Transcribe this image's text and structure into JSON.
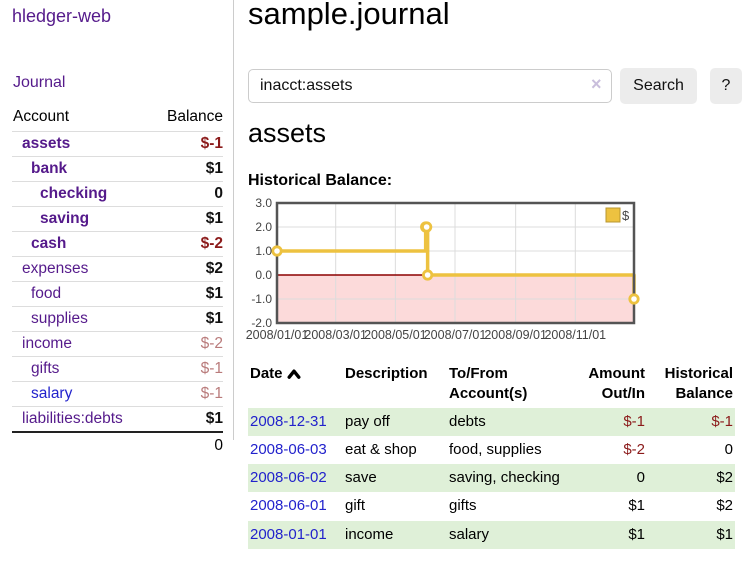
{
  "colors": {
    "link_purple": "#551a8b",
    "link_blue": "#2222cc",
    "negative_strong": "#8b1a1a",
    "negative_soft": "#b97b7b",
    "row_stripe_green": "#dff0d8",
    "chart_line_yellow": "#edc240",
    "chart_negative_fill": "#fcdada",
    "chart_zero_line": "#8b0000"
  },
  "sidebar": {
    "app_title": "hledger-web",
    "journal_link": "Journal",
    "account_header": "Account",
    "balance_header": "Balance",
    "accounts": [
      {
        "name": "assets",
        "balance": "$-1",
        "depth": 1,
        "emph": true,
        "name_color": "purple",
        "bal_style": "negs"
      },
      {
        "name": "bank",
        "balance": "$1",
        "depth": 2,
        "emph": true,
        "name_color": "purple",
        "bal_style": "black"
      },
      {
        "name": "checking",
        "balance": "0",
        "depth": 3,
        "emph": true,
        "name_color": "purple",
        "bal_style": "black"
      },
      {
        "name": "saving",
        "balance": "$1",
        "depth": 3,
        "emph": true,
        "name_color": "purple",
        "bal_style": "black"
      },
      {
        "name": "cash",
        "balance": "$-2",
        "depth": 2,
        "emph": true,
        "name_color": "purple",
        "bal_style": "negs"
      },
      {
        "name": "expenses",
        "balance": "$2",
        "depth": 1,
        "emph": false,
        "name_color": "purple",
        "bal_style": "black"
      },
      {
        "name": "food",
        "balance": "$1",
        "depth": 2,
        "emph": false,
        "name_color": "purple",
        "bal_style": "black"
      },
      {
        "name": "supplies",
        "balance": "$1",
        "depth": 2,
        "emph": false,
        "name_color": "purple",
        "bal_style": "black"
      },
      {
        "name": "income",
        "balance": "$-2",
        "depth": 1,
        "emph": false,
        "name_color": "purple",
        "bal_style": "negw"
      },
      {
        "name": "gifts",
        "balance": "$-1",
        "depth": 2,
        "emph": false,
        "name_color": "purple",
        "bal_style": "negw"
      },
      {
        "name": "salary",
        "balance": "$-1",
        "depth": 2,
        "emph": false,
        "name_color": "blue",
        "bal_style": "negw"
      },
      {
        "name": "liabilities:debts",
        "balance": "$1",
        "depth": 1,
        "emph": false,
        "name_color": "purple",
        "bal_style": "black"
      }
    ],
    "total": "0"
  },
  "main": {
    "title": "sample.journal",
    "search": {
      "value": "inacct:assets",
      "clear_icon": "×",
      "search_button": "Search",
      "help_button": "?"
    },
    "account_heading": "assets",
    "chart_heading": "Historical Balance:"
  },
  "chart_data": {
    "type": "line",
    "step": true,
    "title": "Historical Balance:",
    "series": [
      {
        "name": "$",
        "color": "#edc240",
        "points": [
          [
            "2008-01-01",
            1
          ],
          [
            "2008-06-01",
            2
          ],
          [
            "2008-06-02",
            2
          ],
          [
            "2008-06-03",
            0
          ],
          [
            "2008-12-31",
            -1
          ]
        ]
      }
    ],
    "x_range": [
      "2008-01-01",
      "2008-12-31"
    ],
    "x_ticks": [
      "2008/01/01",
      "2008/03/01",
      "2008/05/01",
      "2008/07/01",
      "2008/09/01",
      "2008/11/01"
    ],
    "y_ticks": [
      3.0,
      2.0,
      1.0,
      0.0,
      -1.0,
      -2.0
    ],
    "ylim": [
      -2,
      3
    ],
    "grid": true,
    "legend_position": "top-right",
    "legend_label": "$",
    "negative_region_shaded": true
  },
  "register": {
    "headers": {
      "date": "Date",
      "description": "Description",
      "accounts": "To/From Account(s)",
      "amount": "Amount Out/In",
      "balance": "Historical Balance"
    },
    "sort": {
      "column": "date",
      "direction": "ascending",
      "icon": "caret-up-icon"
    },
    "rows": [
      {
        "date": "2008-12-31",
        "description": "pay off",
        "accounts": "debts",
        "amount": "$-1",
        "balance": "$-1",
        "amount_neg": true,
        "balance_neg": true,
        "shaded": true
      },
      {
        "date": "2008-06-03",
        "description": "eat & shop",
        "accounts": "food, supplies",
        "amount": "$-2",
        "balance": "0",
        "amount_neg": true,
        "balance_neg": false,
        "shaded": false
      },
      {
        "date": "2008-06-02",
        "description": "save",
        "accounts": "saving, checking",
        "amount": "0",
        "balance": "$2",
        "amount_neg": false,
        "balance_neg": false,
        "shaded": true
      },
      {
        "date": "2008-06-01",
        "description": "gift",
        "accounts": "gifts",
        "amount": "$1",
        "balance": "$2",
        "amount_neg": false,
        "balance_neg": false,
        "shaded": false
      },
      {
        "date": "2008-01-01",
        "description": "income",
        "accounts": "salary",
        "amount": "$1",
        "balance": "$1",
        "amount_neg": false,
        "balance_neg": false,
        "shaded": true
      }
    ]
  }
}
